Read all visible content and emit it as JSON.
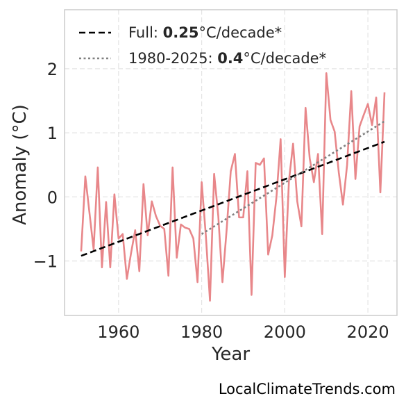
{
  "chart_data": {
    "type": "line",
    "xlabel": "Year",
    "ylabel": "Anomaly (°C)",
    "xlim": [
      1947,
      2027
    ],
    "ylim": [
      -1.85,
      2.92
    ],
    "xticks": [
      1960,
      1980,
      2000,
      2020
    ],
    "yticks": [
      -1,
      0,
      1,
      2
    ],
    "ytick_labels": [
      "−1",
      "0",
      "1",
      "2"
    ],
    "grid": true,
    "legend_position": "top-left",
    "series": [
      {
        "name": "",
        "style": "solid",
        "color": "#e8878a",
        "x": [
          1951,
          1952,
          1953,
          1954,
          1955,
          1956,
          1957,
          1958,
          1959,
          1960,
          1961,
          1962,
          1963,
          1964,
          1965,
          1966,
          1967,
          1968,
          1969,
          1970,
          1971,
          1972,
          1973,
          1974,
          1975,
          1976,
          1977,
          1978,
          1979,
          1980,
          1981,
          1982,
          1983,
          1984,
          1985,
          1986,
          1987,
          1988,
          1989,
          1990,
          1991,
          1992,
          1993,
          1994,
          1995,
          1996,
          1997,
          1998,
          1999,
          2000,
          2001,
          2002,
          2003,
          2004,
          2005,
          2006,
          2007,
          2008,
          2009,
          2010,
          2011,
          2012,
          2013,
          2014,
          2015,
          2016,
          2017,
          2018,
          2019,
          2020,
          2021,
          2022,
          2023,
          2024
        ],
        "values": [
          -0.85,
          0.32,
          -0.25,
          -0.82,
          0.46,
          -1.1,
          -0.08,
          -1.1,
          0.04,
          -0.65,
          -0.58,
          -1.28,
          -0.88,
          -0.52,
          -1.16,
          0.2,
          -0.6,
          -0.07,
          -0.3,
          -0.45,
          -0.5,
          -1.23,
          0.46,
          -0.95,
          -0.43,
          -0.48,
          -0.5,
          -0.65,
          -1.33,
          0.23,
          -0.6,
          -1.62,
          0.36,
          -0.3,
          -1.33,
          -0.52,
          0.4,
          0.67,
          -0.32,
          -0.32,
          0.4,
          -1.53,
          0.53,
          0.5,
          0.6,
          -0.9,
          -0.6,
          0.0,
          0.9,
          -1.25,
          0.25,
          0.83,
          -0.07,
          -0.46,
          1.39,
          0.6,
          0.23,
          0.67,
          -0.58,
          1.93,
          1.2,
          1.02,
          0.38,
          -0.12,
          0.5,
          1.65,
          0.28,
          1.1,
          1.28,
          1.45,
          1.12,
          1.55,
          0.07,
          1.63
        ]
      },
      {
        "name": "Full",
        "style": "dashed",
        "color": "#000000",
        "x": [
          1951,
          2024
        ],
        "values": [
          -0.92,
          0.86
        ]
      },
      {
        "name": "1980-2025",
        "style": "dotted",
        "color": "#808080",
        "x": [
          1980,
          2024
        ],
        "values": [
          -0.58,
          1.18
        ]
      }
    ],
    "legend": [
      {
        "prefix": "Full: ",
        "bold": "0.25",
        "suffix": "°C/decade*"
      },
      {
        "prefix": "1980-2025: ",
        "bold": "0.4",
        "suffix": "°C/decade*"
      }
    ]
  },
  "credit": "LocalClimateTrends.com",
  "colors": {
    "grid": "#e3e3e3",
    "frame": "#cccccc",
    "anomaly_line": "#e8878a",
    "full_trend": "#000000",
    "recent_trend": "#808080"
  }
}
